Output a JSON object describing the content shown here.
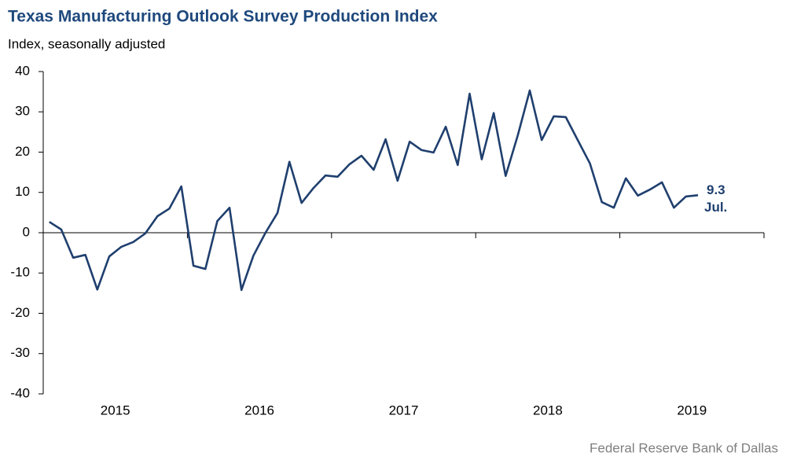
{
  "chart_data": {
    "type": "line",
    "title": "Texas Manufacturing Outlook Survey Production Index",
    "subtitle": "Index, seasonally adjusted",
    "source": "Federal Reserve Bank of Dallas",
    "x": [
      2015.042,
      2015.125,
      2015.208,
      2015.292,
      2015.375,
      2015.458,
      2015.542,
      2015.625,
      2015.708,
      2015.792,
      2015.875,
      2015.958,
      2016.042,
      2016.125,
      2016.208,
      2016.292,
      2016.375,
      2016.458,
      2016.542,
      2016.625,
      2016.708,
      2016.792,
      2016.875,
      2016.958,
      2017.042,
      2017.125,
      2017.208,
      2017.292,
      2017.375,
      2017.458,
      2017.542,
      2017.625,
      2017.708,
      2017.792,
      2017.875,
      2017.958,
      2018.042,
      2018.125,
      2018.208,
      2018.292,
      2018.375,
      2018.458,
      2018.542,
      2018.625,
      2018.708,
      2018.792,
      2018.875,
      2018.958,
      2019.042,
      2019.125,
      2019.208,
      2019.292,
      2019.375,
      2019.458,
      2019.542
    ],
    "series": [
      {
        "name": "Production Index",
        "color": "#1f3f6e",
        "values": [
          2.7,
          0.8,
          -6.2,
          -5.5,
          -14.1,
          -5.9,
          -3.5,
          -2.3,
          -0.2,
          4.1,
          6.0,
          11.5,
          -8.2,
          -9.0,
          2.9,
          6.2,
          -14.2,
          -5.7,
          0,
          4.9,
          17.6,
          7.4,
          11.1,
          14.2,
          13.9,
          17.0,
          19.1,
          15.6,
          23.2,
          12.9,
          22.6,
          20.5,
          19.9,
          26.3,
          16.8,
          34.5,
          18.2,
          29.7,
          14.1,
          24.2,
          35.3,
          23.0,
          28.9,
          28.7,
          23.0,
          17.2,
          7.6,
          6.2,
          13.5,
          9.2,
          10.7,
          12.5,
          6.2,
          9.0,
          9.3
        ]
      }
    ],
    "annotation": {
      "value_label": "9.3",
      "text": "Jul."
    },
    "xlim": [
      2015,
      2020
    ],
    "xticks": [
      {
        "value": 2015.5,
        "label": "2015"
      },
      {
        "value": 2016.5,
        "label": "2016"
      },
      {
        "value": 2017.5,
        "label": "2017"
      },
      {
        "value": 2018.5,
        "label": "2018"
      },
      {
        "value": 2019.5,
        "label": "2019"
      }
    ],
    "ylim": [
      -40,
      40
    ],
    "yticks": [
      -40,
      -30,
      -20,
      -10,
      0,
      10,
      20,
      30,
      40
    ],
    "grid": false
  }
}
